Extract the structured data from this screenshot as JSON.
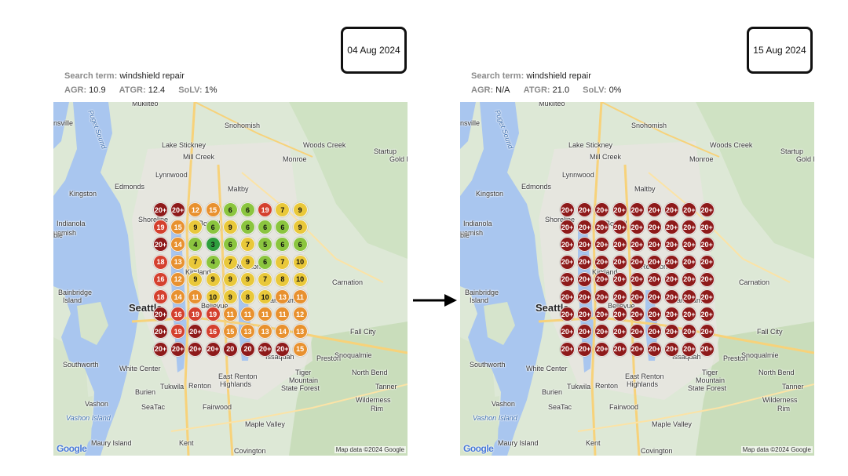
{
  "panels": [
    {
      "date": "04 Aug 2024",
      "search_label": "Search term:",
      "search_term": "windshield repair",
      "agr_label": "AGR:",
      "agr_value": "10.9",
      "atgr_label": "ATGR:",
      "atgr_value": "12.4",
      "solv_label": "SoLV:",
      "solv_value": "1%",
      "grid": [
        [
          "20+",
          "20+",
          "12",
          "15",
          "6",
          "6",
          "19",
          "7",
          "9"
        ],
        [
          "19",
          "15",
          "9",
          "6",
          "9",
          "6",
          "6",
          "6",
          "9"
        ],
        [
          "20+",
          "14",
          "4",
          "3",
          "6",
          "7",
          "5",
          "6",
          "6"
        ],
        [
          "18",
          "13",
          "7",
          "4",
          "7",
          "9",
          "6",
          "7",
          "10"
        ],
        [
          "16",
          "12",
          "9",
          "9",
          "9",
          "9",
          "7",
          "8",
          "10"
        ],
        [
          "18",
          "14",
          "11",
          "10",
          "9",
          "8",
          "10",
          "13",
          "11"
        ],
        [
          "20+",
          "16",
          "19",
          "19",
          "11",
          "11",
          "11",
          "11",
          "12"
        ],
        [
          "20+",
          "19",
          "20+",
          "16",
          "15",
          "13",
          "13",
          "14",
          "13"
        ],
        [
          "20+",
          "20+",
          "20+",
          "20+",
          "20",
          "20",
          "20+",
          "20+",
          "15"
        ]
      ]
    },
    {
      "date": "15 Aug 2024",
      "search_label": "Search term:",
      "search_term": "windshield repair",
      "agr_label": "AGR:",
      "agr_value": "N/A",
      "atgr_label": "ATGR:",
      "atgr_value": "21.0",
      "solv_label": "SoLV:",
      "solv_value": "0%",
      "grid": [
        [
          "20+",
          "20+",
          "20+",
          "20+",
          "20+",
          "20+",
          "20+",
          "20+",
          "20+"
        ],
        [
          "20+",
          "20+",
          "20+",
          "20+",
          "20+",
          "20+",
          "20+",
          "20+",
          "20+"
        ],
        [
          "20+",
          "20+",
          "20+",
          "20+",
          "20+",
          "20+",
          "20+",
          "20+",
          "20+"
        ],
        [
          "20+",
          "20+",
          "20+",
          "20+",
          "20+",
          "20+",
          "20+",
          "20+",
          "20+"
        ],
        [
          "20+",
          "20+",
          "20+",
          "20+",
          "20+",
          "20+",
          "20+",
          "20+",
          "20+"
        ],
        [
          "20+",
          "20+",
          "20+",
          "20+",
          "20+",
          "20+",
          "20+",
          "20+",
          "20+"
        ],
        [
          "20+",
          "20+",
          "20+",
          "20+",
          "20+",
          "20+",
          "20+",
          "20+",
          "20+"
        ],
        [
          "20+",
          "20+",
          "20+",
          "20+",
          "20+",
          "20+",
          "20+",
          "20+",
          "20+"
        ],
        [
          "20+",
          "20+",
          "20+",
          "20+",
          "20+",
          "20+",
          "20+",
          "20+",
          "20+"
        ]
      ]
    }
  ],
  "map_labels": {
    "mukilteo": "Mukilteo",
    "snohomish": "Snohomish",
    "lake_stickney": "Lake Stickney",
    "woods_creek": "Woods Creek",
    "startup": "Startup",
    "gold_b": "Gold B",
    "mill_creek": "Mill Creek",
    "monroe": "Monroe",
    "lynnwood": "Lynnwood",
    "edmonds": "Edmonds",
    "kingston": "Kingston",
    "maltby": "Maltby",
    "shoreline": "Shoreline",
    "indianola": "Indianola",
    "suquamish": "uamish",
    "bainbridge": "Bainbridge",
    "island": "Island",
    "seattle": "Seattle",
    "bellevue": "Bellevue",
    "kirkland": "Kirkland",
    "redmond": "Redmond",
    "bothell": "Bothell",
    "carnation": "Carnation",
    "sammamish": "Sammamish",
    "issaquah": "Issaquah",
    "preston": "Preston",
    "fall_city": "Fall City",
    "snoqualmie": "Snoqualmie",
    "north_bend": "North Bend",
    "southworth": "Southworth",
    "white_center": "White Center",
    "burien": "Burien",
    "tukwila": "Tukwila",
    "renton": "Renton",
    "east_renton": "East Renton",
    "highlands": "Highlands",
    "tiger_mountain": "Tiger",
    "tiger_mountain2": "Mountain",
    "state_forest": "State Forest",
    "tanner": "Tanner",
    "vashon": "Vashon",
    "vashon_island": "Vashon Island",
    "seatac": "SeaTac",
    "fairwood": "Fairwood",
    "wilderness": "Wilderness",
    "rim": "Rim",
    "maple_valley": "Maple Valley",
    "maury_island": "Maury Island",
    "kent": "Kent",
    "covington": "Covington",
    "puget_sound": "Puget Sound",
    "ensville": "nsville",
    "keble": "ble"
  },
  "google_logo": "Google",
  "map_credit": "Map data ©2024 Google",
  "colors": {
    "rank_1_3": "#2e9e3e",
    "rank_4_6": "#8bc53f",
    "rank_7_10": "#e9c83a",
    "rank_11_15": "#e8912f",
    "rank_16_19": "#d4402e",
    "rank_20_plus": "#8e1a1a",
    "water": "#a9c6ef",
    "land": "#dde8d6"
  }
}
